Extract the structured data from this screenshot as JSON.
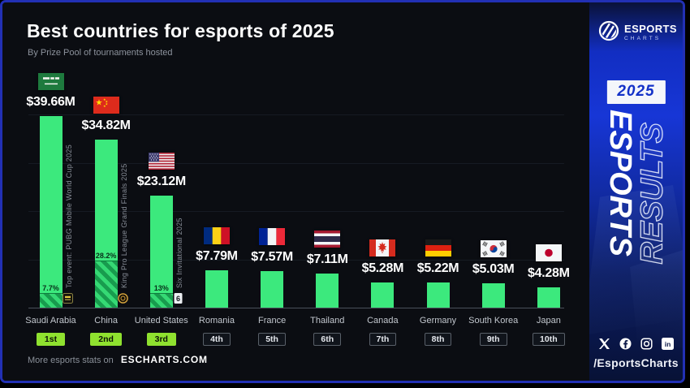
{
  "title": "Best countries for esports of 2025",
  "subtitle": "By Prize Pool of tournaments hosted",
  "footer": {
    "prefix": "More esports stats on",
    "site": "ESCHARTS.COM"
  },
  "sidebar": {
    "brand_top": "ESPORTS",
    "brand_bottom": "CHARTS",
    "year_badge": "2025",
    "vertical_word_solid": "ESPORTS",
    "vertical_word_outline": "RESULTS",
    "handle": "/EsportsCharts",
    "social_icons": [
      "x-icon",
      "facebook-icon",
      "instagram-icon",
      "linkedin-icon"
    ]
  },
  "colors": {
    "background": "#0b0d12",
    "bar_green": "#3ce97d",
    "badge_green": "#8fe12f",
    "brand_blue": "#1736d6",
    "frame_border_blue": "#2230b4"
  },
  "chart_data": {
    "type": "bar",
    "title": "Best countries for esports of 2025",
    "subtitle": "By Prize Pool of tournaments hosted",
    "unit": "USD millions (prize pool of tournaments hosted)",
    "ylim": [
      0,
      40
    ],
    "gridline_step_musd": 10,
    "grid": "horizontal",
    "legend": "none",
    "categories": [
      "Saudi Arabia",
      "China",
      "United States",
      "Romania",
      "France",
      "Thailand",
      "Canada",
      "Germany",
      "South Korea",
      "Japan"
    ],
    "values": [
      39.66,
      34.82,
      23.12,
      7.79,
      7.57,
      7.11,
      5.28,
      5.22,
      5.03,
      4.28
    ],
    "bars": [
      {
        "country": "Saudi Arabia",
        "flag": "sa",
        "value_musd": 39.66,
        "label": "$39.66M",
        "rank": "1st",
        "highlighted": true,
        "top_event": {
          "share_label": "7.7%",
          "share": 0.077,
          "name": "Top event: PUBG Mobile World Cup 2025",
          "icon": "pubg-mobile-icon"
        }
      },
      {
        "country": "China",
        "flag": "cn",
        "value_musd": 34.82,
        "label": "$34.82M",
        "rank": "2nd",
        "highlighted": true,
        "top_event": {
          "share_label": "28.2%",
          "share": 0.282,
          "name": "King Pro League Grand Finals 2025",
          "icon": "king-pro-league-icon"
        }
      },
      {
        "country": "United States",
        "flag": "us",
        "value_musd": 23.12,
        "label": "$23.12M",
        "rank": "3rd",
        "highlighted": true,
        "top_event": {
          "share_label": "13%",
          "share": 0.13,
          "name": "Six Invitational 2025",
          "icon": "six-invitational-icon"
        }
      },
      {
        "country": "Romania",
        "flag": "ro",
        "value_musd": 7.79,
        "label": "$7.79M",
        "rank": "4th",
        "highlighted": false
      },
      {
        "country": "France",
        "flag": "fr",
        "value_musd": 7.57,
        "label": "$7.57M",
        "rank": "5th",
        "highlighted": false
      },
      {
        "country": "Thailand",
        "flag": "th",
        "value_musd": 7.11,
        "label": "$7.11M",
        "rank": "6th",
        "highlighted": false
      },
      {
        "country": "Canada",
        "flag": "ca",
        "value_musd": 5.28,
        "label": "$5.28M",
        "rank": "7th",
        "highlighted": false
      },
      {
        "country": "Germany",
        "flag": "de",
        "value_musd": 5.22,
        "label": "$5.22M",
        "rank": "8th",
        "highlighted": false
      },
      {
        "country": "South Korea",
        "flag": "kr",
        "value_musd": 5.03,
        "label": "$5.03M",
        "rank": "9th",
        "highlighted": false
      },
      {
        "country": "Japan",
        "flag": "jp",
        "value_musd": 4.28,
        "label": "$4.28M",
        "rank": "10th",
        "highlighted": false
      }
    ]
  }
}
